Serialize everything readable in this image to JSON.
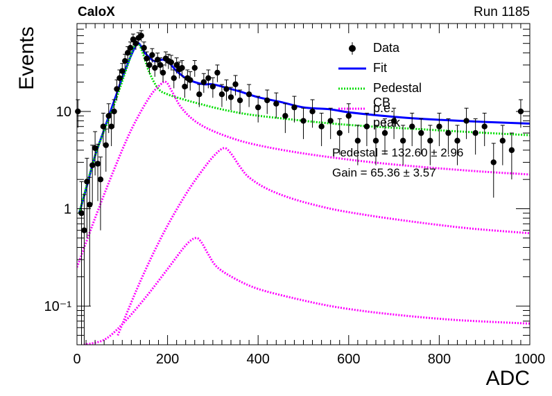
{
  "header": {
    "experiment": "CaloX",
    "run": "Run 1185"
  },
  "fit_results": {
    "pedestal": "Pedestal = 132.60 ± 2.96",
    "gain": "Gain = 65.36 ± 3.57"
  },
  "colors": {
    "data": "#000000",
    "fit": "#0000ff",
    "pedestal_cb": "#00dd00",
    "pe_peak": "#ff00ff"
  },
  "chart_data": {
    "type": "line",
    "xlabel": "ADC",
    "ylabel": "Events",
    "xlim": [
      0,
      1000
    ],
    "ylim": [
      0.04,
      80
    ],
    "yscale": "log",
    "x_ticks": [
      0,
      200,
      400,
      600,
      800,
      1000
    ],
    "y_ticks": [
      {
        "value": 0.1,
        "label": "10⁻¹"
      },
      {
        "value": 1,
        "label": "1"
      },
      {
        "value": 10,
        "label": "10"
      }
    ],
    "legend": {
      "position": "top-right",
      "entries": [
        {
          "label": "Data",
          "style": "marker"
        },
        {
          "label": "Fit",
          "style": "solid"
        },
        {
          "label": "Pedestal CB",
          "style": "dotted"
        },
        {
          "label": "p.e. peak",
          "style": "dotted"
        }
      ]
    },
    "series": [
      {
        "name": "Data",
        "style": "points",
        "x": [
          2,
          10,
          16,
          22,
          28,
          34,
          40,
          46,
          52,
          58,
          64,
          70,
          76,
          82,
          88,
          94,
          100,
          106,
          112,
          118,
          124,
          130,
          136,
          142,
          148,
          154,
          160,
          166,
          172,
          178,
          184,
          190,
          196,
          202,
          208,
          214,
          220,
          226,
          232,
          238,
          244,
          250,
          260,
          270,
          280,
          290,
          300,
          310,
          320,
          330,
          340,
          350,
          360,
          380,
          400,
          420,
          440,
          460,
          480,
          500,
          520,
          540,
          560,
          580,
          600,
          620,
          640,
          660,
          680,
          700,
          720,
          740,
          760,
          780,
          800,
          820,
          840,
          860,
          880,
          900,
          920,
          940,
          960,
          980
        ],
        "y": [
          10.0,
          0.9,
          0.6,
          1.9,
          1.1,
          2.8,
          4.2,
          2.9,
          2.0,
          7.0,
          4.5,
          9.0,
          7.0,
          10.0,
          17.0,
          22.0,
          26.0,
          33.0,
          40.0,
          45.0,
          55.0,
          50.0,
          57.0,
          60.0,
          45.0,
          35.0,
          30.0,
          38.0,
          28.0,
          34.0,
          30.0,
          25.0,
          35.0,
          33.0,
          32.0,
          22.0,
          30.0,
          27.0,
          28.0,
          18.0,
          22.0,
          21.0,
          28.0,
          15.0,
          20.0,
          22.0,
          18.0,
          25.0,
          15.0,
          17.0,
          14.0,
          19.0,
          13.0,
          15.0,
          11.0,
          13.0,
          12.0,
          9.0,
          11.0,
          8.0,
          10.0,
          7.0,
          8.0,
          6.0,
          9.0,
          5.0,
          7.0,
          5.0,
          6.0,
          8.0,
          5.0,
          7.0,
          6.0,
          5.0,
          7.0,
          6.0,
          5.0,
          8.0,
          6.0,
          7.0,
          3.0,
          5.0,
          4.0,
          10.0
        ],
        "yerr": [
          3.2,
          1.0,
          0.8,
          1.4,
          1.0,
          1.7,
          2.0,
          1.7,
          1.4,
          2.6,
          2.1,
          3.0,
          2.6,
          3.2,
          4.1,
          4.7,
          5.1,
          5.7,
          6.3,
          6.7,
          7.4,
          7.1,
          7.5,
          7.7,
          6.7,
          5.9,
          5.5,
          6.2,
          5.3,
          5.8,
          5.5,
          5.0,
          5.9,
          5.7,
          5.7,
          4.7,
          5.5,
          5.2,
          5.3,
          4.2,
          4.7,
          4.6,
          5.3,
          3.9,
          4.5,
          4.7,
          4.2,
          5.0,
          3.9,
          4.1,
          3.7,
          4.4,
          3.6,
          3.9,
          3.3,
          3.6,
          3.5,
          3.0,
          3.3,
          2.8,
          3.2,
          2.6,
          2.8,
          2.4,
          3.0,
          2.2,
          2.6,
          2.2,
          2.4,
          2.8,
          2.2,
          2.6,
          2.4,
          2.2,
          2.6,
          2.4,
          2.2,
          2.8,
          2.4,
          2.6,
          1.7,
          2.2,
          2.0,
          3.2
        ]
      },
      {
        "name": "Fit",
        "style": "solid",
        "x": [
          5,
          20,
          40,
          60,
          80,
          100,
          120,
          135,
          150,
          170,
          190,
          205,
          220,
          240,
          260,
          280,
          300,
          330,
          360,
          400,
          450,
          500,
          560,
          600,
          700,
          800,
          900,
          1000
        ],
        "y": [
          0.9,
          1.6,
          3.5,
          6.5,
          12.0,
          22.0,
          38.0,
          50.0,
          40.0,
          33.0,
          34.0,
          31.0,
          26.0,
          22.0,
          20.0,
          19.0,
          19.0,
          17.5,
          16.0,
          14.0,
          12.5,
          11.0,
          10.5,
          9.8,
          8.8,
          8.2,
          7.8,
          7.5
        ]
      },
      {
        "name": "Pedestal CB",
        "style": "dotted",
        "x": [
          5,
          40,
          80,
          110,
          125,
          135,
          145,
          160,
          180,
          200,
          230,
          270,
          320,
          380,
          450,
          550,
          650,
          750,
          850,
          1000
        ],
        "y": [
          0.9,
          3.5,
          11.0,
          28.0,
          45.0,
          50.0,
          40.0,
          25.0,
          17.0,
          15.0,
          13.5,
          12.0,
          10.5,
          9.3,
          8.5,
          7.6,
          7.0,
          6.6,
          6.2,
          5.7
        ]
      },
      {
        "name": "p.e. peak",
        "style": "dotted",
        "x": [
          0,
          40,
          80,
          120,
          160,
          185,
          197,
          210,
          230,
          260,
          300,
          360,
          420,
          500,
          600,
          700,
          800,
          900,
          1000
        ],
        "y": [
          0.25,
          0.8,
          2.4,
          6.5,
          14.0,
          19.0,
          20.0,
          16.0,
          11.0,
          8.0,
          6.3,
          5.0,
          4.3,
          3.7,
          3.2,
          2.85,
          2.6,
          2.4,
          2.25
        ]
      },
      {
        "name": "p.e. peak",
        "style": "dotted",
        "x": [
          90,
          140,
          190,
          240,
          280,
          305,
          325,
          340,
          360,
          380,
          420,
          480,
          560,
          640,
          720,
          800,
          880,
          1000
        ],
        "y": [
          0.05,
          0.18,
          0.55,
          1.4,
          2.6,
          3.6,
          4.2,
          3.7,
          2.7,
          2.1,
          1.6,
          1.25,
          1.0,
          0.86,
          0.76,
          0.68,
          0.62,
          0.56
        ]
      },
      {
        "name": "p.e. peak",
        "style": "dotted",
        "x": [
          15,
          60,
          100,
          150,
          200,
          240,
          262,
          275,
          290,
          310,
          350,
          400,
          480,
          560,
          640,
          720,
          800,
          880,
          1000
        ],
        "y": [
          0.04,
          0.045,
          0.065,
          0.12,
          0.24,
          0.42,
          0.5,
          0.45,
          0.34,
          0.25,
          0.19,
          0.15,
          0.12,
          0.1,
          0.088,
          0.08,
          0.074,
          0.07,
          0.066
        ]
      }
    ]
  }
}
